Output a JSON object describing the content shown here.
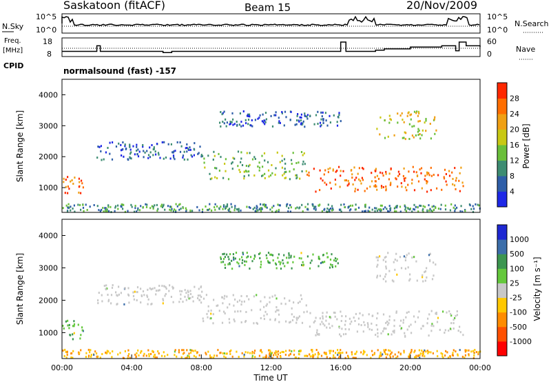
{
  "header": {
    "station": "Saskatoon (fitACF)",
    "beam": "Beam 15",
    "date": "20/Nov/2009",
    "program": "normalsound (fast) -157"
  },
  "chart_data": [
    {
      "type": "line",
      "panel": "noise",
      "ylabel_left": "N.Sky",
      "ylabel_right": "N.Search",
      "yticks_left": [
        "10^5",
        "10^0"
      ],
      "yticks_right": [
        "10^5",
        "10^0"
      ]
    },
    {
      "type": "line",
      "panel": "frequency",
      "ylabel_left": "Freq.",
      "ylabel_left_unit": "[MHz]",
      "ylabel_left_sub": "CPID",
      "ylabel_right": "Nave",
      "yticks_left": [
        "18",
        "8"
      ],
      "yticks_right": [
        "60",
        "0"
      ],
      "x": [
        0,
        1.9,
        2.0,
        2.2,
        5.7,
        5.8,
        6.3,
        15.8,
        16.0,
        16.3,
        17.7,
        18.0,
        18.5,
        19.7,
        20.0,
        20.4,
        20.7,
        21.8,
        22.2,
        22.6,
        22.8,
        23.2,
        24.0
      ],
      "freq_mhz": [
        10.5,
        10.5,
        15,
        10.5,
        10.5,
        9.5,
        10.5,
        10.5,
        18,
        10.5,
        10.5,
        11.5,
        12.5,
        12.5,
        14,
        14,
        14,
        15,
        15,
        11,
        18,
        15,
        14
      ]
    },
    {
      "type": "heatmap",
      "panel": "power",
      "ylabel": "Slant Range [km]",
      "yticks": [
        1000,
        2000,
        3000,
        4000
      ],
      "ylim": [
        200,
        4500
      ],
      "xlim": [
        0,
        24
      ],
      "colorbar_label": "Power [dB]",
      "colorbar_ticks": [
        4,
        8,
        12,
        16,
        20,
        24,
        28
      ],
      "colorbar_colors": [
        "#1e28e6",
        "#2e5ea8",
        "#3d8c72",
        "#6abf3a",
        "#c8c814",
        "#f0a014",
        "#ff6e00",
        "#ff2800"
      ],
      "features": [
        {
          "x": [
            0,
            1.2
          ],
          "range": [
            800,
            1400
          ],
          "level": 26
        },
        {
          "x": [
            1.8,
            8.0
          ],
          "range": [
            1900,
            2500
          ],
          "level": 9
        },
        {
          "x": [
            8.0,
            14.0
          ],
          "range": [
            1300,
            2200
          ],
          "level": 17
        },
        {
          "x": [
            14.0,
            23.0
          ],
          "range": [
            900,
            1700
          ],
          "level": 27
        },
        {
          "x": [
            9.0,
            16.0
          ],
          "range": [
            3000,
            3500
          ],
          "level": 8
        },
        {
          "x": [
            18.0,
            21.5
          ],
          "range": [
            2600,
            3500
          ],
          "level": 21
        },
        {
          "x": [
            0,
            24
          ],
          "range": [
            200,
            500
          ],
          "level": 10
        }
      ]
    },
    {
      "type": "heatmap",
      "panel": "velocity",
      "ylabel": "Slant Range [km]",
      "yticks": [
        1000,
        2000,
        3000,
        4000
      ],
      "ylim": [
        200,
        4500
      ],
      "xlim": [
        0,
        24
      ],
      "xlabel": "Time UT",
      "xticks": [
        "00:00",
        "04:00",
        "08:00",
        "12:00",
        "16:00",
        "20:00",
        "00:00"
      ],
      "colorbar_label": "Velocity [m s⁻¹]",
      "colorbar_ticks": [
        "1000",
        "500",
        "100",
        "25",
        "-25",
        "-100",
        "-500",
        "-1000"
      ],
      "colorbar_colors": [
        "#1e28d2",
        "#3c6eaa",
        "#3c9650",
        "#64c83c",
        "#c8c8c8",
        "#ffc800",
        "#ff8c00",
        "#ff5000",
        "#ff0000"
      ],
      "features": [
        {
          "x": [
            0,
            1.2
          ],
          "range": [
            800,
            1400
          ],
          "velocity": 150
        },
        {
          "x": [
            1.8,
            8.0
          ],
          "range": [
            1900,
            2500
          ],
          "velocity": 0
        },
        {
          "x": [
            8.0,
            14.0
          ],
          "range": [
            1300,
            2200
          ],
          "velocity": 0
        },
        {
          "x": [
            14.0,
            23.0
          ],
          "range": [
            900,
            1700
          ],
          "velocity": 0
        },
        {
          "x": [
            9.0,
            16.0
          ],
          "range": [
            3000,
            3500
          ],
          "velocity": 200
        },
        {
          "x": [
            18.0,
            21.5
          ],
          "range": [
            2600,
            3500
          ],
          "velocity": 0
        },
        {
          "x": [
            0,
            24
          ],
          "range": [
            200,
            500
          ],
          "velocity": -60
        }
      ]
    }
  ]
}
